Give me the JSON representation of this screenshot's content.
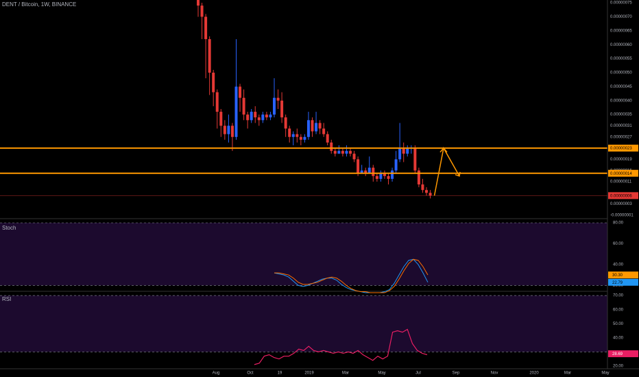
{
  "header": {
    "symbol_title": "DENT / Bitcoin, 1W, BINANCE",
    "stoch_label": "Stoch",
    "rsi_label": "RSI"
  },
  "colors": {
    "background": "#000000",
    "up_candle": "#2962ff",
    "down_candle": "#e53935",
    "horizontal_line": "#ff9800",
    "price_tag_red": "#e53935",
    "price_tag_orange": "#ff9800",
    "stoch_k": "#2196f3",
    "stoch_d": "#ff6f00",
    "rsi_line": "#e91e63",
    "indicator_band": "#1c0a2e"
  },
  "chart_data": [
    {
      "type": "candlestick",
      "title": "DENT / Bitcoin, 1W, BINANCE",
      "x_tick_labels": [
        "Aug",
        "Oct",
        "19",
        "2019",
        "Mar",
        "May",
        "Jul",
        "Sep",
        "Nov",
        "2020",
        "Mar",
        "May"
      ],
      "y_tick_labels": [
        "0.00000075",
        "0.00000070",
        "0.00000065",
        "0.00000060",
        "0.00000055",
        "0.00000050",
        "0.00000045",
        "0.00000040",
        "0.00000035",
        "0.00000031",
        "0.00000027",
        "0.00000023",
        "0.00000019",
        "0.00000015",
        "0.00000011",
        "0.00000006",
        "0.00000003",
        "-0.00000001"
      ],
      "ylim": [
        -2e-08,
        7.6e-07
      ],
      "price_tags": [
        {
          "label": "0.00000023",
          "value": 2.3e-07,
          "color": "#ff9800"
        },
        {
          "label": "0.00000014",
          "value": 1.4e-07,
          "color": "#ff9800"
        },
        {
          "label": "0.00000006",
          "value": 6e-08,
          "color": "#e53935"
        }
      ],
      "horizontal_lines": [
        2.3e-07,
        1.4e-07
      ],
      "candles": [
        [
          8e-07,
          7.4e-07,
          8.1e-07,
          7e-07
        ],
        [
          7.4e-07,
          7e-07,
          7.5e-07,
          6.2e-07
        ],
        [
          7e-07,
          6.2e-07,
          7.1e-07,
          4.8e-07
        ],
        [
          6.2e-07,
          5e-07,
          6.3e-07,
          4.2e-07
        ],
        [
          5e-07,
          4.3e-07,
          5.1e-07,
          3.8e-07
        ],
        [
          4.3e-07,
          3.6e-07,
          4.4e-07,
          3e-07
        ],
        [
          3.6e-07,
          3.1e-07,
          3.7e-07,
          2.7e-07
        ],
        [
          3.1e-07,
          2.8e-07,
          3.3e-07,
          2.6e-07
        ],
        [
          2.8e-07,
          3.1e-07,
          3.5e-07,
          2.5e-07
        ],
        [
          3.1e-07,
          2.7e-07,
          3.2e-07,
          2.2e-07
        ],
        [
          2.7e-07,
          4.5e-07,
          6.2e-07,
          2.6e-07
        ],
        [
          4.5e-07,
          4.1e-07,
          4.6e-07,
          3.6e-07
        ],
        [
          4.1e-07,
          3.5e-07,
          4.4e-07,
          3.3e-07
        ],
        [
          3.5e-07,
          3.3e-07,
          3.6e-07,
          3e-07
        ],
        [
          3.3e-07,
          3.6e-07,
          3.7e-07,
          3.2e-07
        ],
        [
          3.6e-07,
          3.4e-07,
          3.8e-07,
          3.2e-07
        ],
        [
          3.4e-07,
          3.3e-07,
          3.5e-07,
          3.1e-07
        ],
        [
          3.3e-07,
          3.5e-07,
          3.6e-07,
          3.2e-07
        ],
        [
          3.5e-07,
          3.4e-07,
          3.6e-07,
          3.3e-07
        ],
        [
          3.4e-07,
          3.5e-07,
          3.6e-07,
          3.3e-07
        ],
        [
          3.5e-07,
          4.1e-07,
          4.8e-07,
          3.4e-07
        ],
        [
          4.1e-07,
          4e-07,
          4.4e-07,
          3.7e-07
        ],
        [
          4e-07,
          3.4e-07,
          4.3e-07,
          3.2e-07
        ],
        [
          3.4e-07,
          3e-07,
          3.5e-07,
          2.7e-07
        ],
        [
          3e-07,
          2.7e-07,
          3.1e-07,
          2.5e-07
        ],
        [
          2.7e-07,
          2.8e-07,
          2.9e-07,
          2.4e-07
        ],
        [
          2.8e-07,
          2.7e-07,
          3e-07,
          2.5e-07
        ],
        [
          2.7e-07,
          2.6e-07,
          2.8e-07,
          2.4e-07
        ],
        [
          2.6e-07,
          2.7e-07,
          2.8e-07,
          2.5e-07
        ],
        [
          2.7e-07,
          3.3e-07,
          3.6e-07,
          2.6e-07
        ],
        [
          3.3e-07,
          2.9e-07,
          3.4e-07,
          2.7e-07
        ],
        [
          2.9e-07,
          3.2e-07,
          3.6e-07,
          2.8e-07
        ],
        [
          3.2e-07,
          3e-07,
          3.3e-07,
          2.8e-07
        ],
        [
          3e-07,
          2.8e-07,
          3.2e-07,
          2.7e-07
        ],
        [
          2.8e-07,
          2.5e-07,
          2.9e-07,
          2.4e-07
        ],
        [
          2.5e-07,
          2.2e-07,
          2.6e-07,
          2.1e-07
        ],
        [
          2.2e-07,
          2.1e-07,
          2.3e-07,
          2e-07
        ],
        [
          2.1e-07,
          2.2e-07,
          2.4e-07,
          2.1e-07
        ],
        [
          2.2e-07,
          2.1e-07,
          2.3e-07,
          2e-07
        ],
        [
          2.1e-07,
          2.2e-07,
          2.4e-07,
          2e-07
        ],
        [
          2.2e-07,
          2.1e-07,
          2.3e-07,
          2e-07
        ],
        [
          2.1e-07,
          1.9e-07,
          2.2e-07,
          1.8e-07
        ],
        [
          1.9e-07,
          1.4e-07,
          2e-07,
          1.3e-07
        ],
        [
          1.4e-07,
          1.5e-07,
          1.7e-07,
          1.4e-07
        ],
        [
          1.5e-07,
          1.4e-07,
          1.6e-07,
          1.3e-07
        ],
        [
          1.4e-07,
          1.6e-07,
          2e-07,
          1.4e-07
        ],
        [
          1.6e-07,
          1.3e-07,
          1.7e-07,
          1.1e-07
        ],
        [
          1.3e-07,
          1.2e-07,
          1.4e-07,
          1.1e-07
        ],
        [
          1.2e-07,
          1.4e-07,
          1.5e-07,
          1.1e-07
        ],
        [
          1.4e-07,
          1.3e-07,
          1.5e-07,
          1.2e-07
        ],
        [
          1.3e-07,
          1.2e-07,
          1.4e-07,
          1e-07
        ],
        [
          1.2e-07,
          1.5e-07,
          1.6e-07,
          1.1e-07
        ],
        [
          1.5e-07,
          1.9e-07,
          2.2e-07,
          1.4e-07
        ],
        [
          1.9e-07,
          2.3e-07,
          3.2e-07,
          1.8e-07
        ],
        [
          2.3e-07,
          2.1e-07,
          2.5e-07,
          1.8e-07
        ],
        [
          2.1e-07,
          2.3e-07,
          2.4e-07,
          2e-07
        ],
        [
          2.3e-07,
          2.3e-07,
          2.4e-07,
          2.1e-07
        ],
        [
          2.3e-07,
          1.5e-07,
          2.4e-07,
          1.4e-07
        ],
        [
          1.5e-07,
          1e-07,
          1.6e-07,
          9e-08
        ],
        [
          1e-07,
          8e-08,
          1.2e-07,
          7e-08
        ],
        [
          8e-08,
          7e-08,
          9e-08,
          6e-08
        ],
        [
          7e-08,
          6e-08,
          8e-08,
          5e-08
        ]
      ],
      "projection_path": [
        6e-08,
        2.3e-07,
        1.3e-07
      ]
    },
    {
      "type": "line",
      "title": "Stoch",
      "y_tick_labels": [
        "80.00",
        "60.00",
        "40.00",
        "20.00"
      ],
      "ylim": [
        15,
        82
      ],
      "bands": [
        80,
        20
      ],
      "value_tags": [
        {
          "label": "30.30",
          "color": "#ff9800"
        },
        {
          "label": "22.79",
          "color": "#2196f3"
        }
      ],
      "series": [
        {
          "values": [
            32,
            31,
            30,
            28,
            24,
            20,
            19,
            20,
            22,
            24,
            26,
            27,
            27,
            25,
            21,
            18,
            16,
            15,
            14,
            13,
            13,
            13,
            13,
            14,
            16,
            22,
            30,
            38,
            44,
            45,
            40,
            32,
            23
          ]
        },
        {
          "values": [
            32,
            32,
            31,
            30,
            27,
            23,
            21,
            21,
            22,
            23,
            25,
            27,
            28,
            27,
            24,
            20,
            17,
            15,
            14,
            14,
            13,
            13,
            13,
            13,
            15,
            19,
            26,
            34,
            41,
            45,
            44,
            38,
            30
          ]
        }
      ]
    },
    {
      "type": "line",
      "title": "RSI",
      "y_tick_labels": [
        "70.00",
        "60.00",
        "50.00",
        "40.00",
        "28.69",
        "20.00"
      ],
      "ylim": [
        19,
        72
      ],
      "bands": [
        70,
        30
      ],
      "value_tags": [
        {
          "label": "28.69",
          "color": "#e91e63"
        }
      ],
      "series": [
        {
          "values": [
            21,
            22,
            27,
            28,
            26,
            25,
            27,
            27,
            29,
            32,
            31,
            34,
            31,
            30,
            31,
            30,
            29,
            30,
            29,
            30,
            29,
            31,
            28,
            26,
            24,
            27,
            25,
            27,
            44,
            45,
            44,
            46,
            36,
            31,
            29,
            28
          ]
        }
      ]
    }
  ]
}
